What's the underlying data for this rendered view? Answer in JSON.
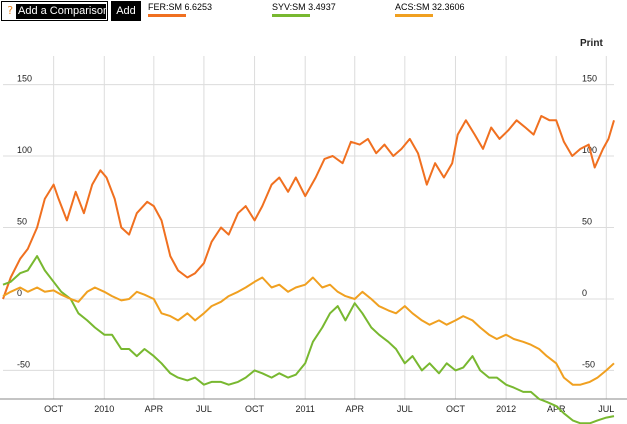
{
  "toolbar": {
    "help_icon": "?",
    "compare_placeholder": "Add a Comparison",
    "add_label": "Add",
    "legend": [
      {
        "label": "FER:SM 6.6253",
        "color": "#f07020"
      },
      {
        "label": "SYV:SM 3.4937",
        "color": "#78b830"
      },
      {
        "label": "ACS:SM 32.3606",
        "color": "#f0a020"
      }
    ]
  },
  "print_label": "Print",
  "chart_data": {
    "type": "line",
    "title": "",
    "xlabel": "",
    "ylabel": "",
    "ylim": [
      -70,
      170
    ],
    "x_range": [
      "2009-07-01",
      "2012-07-15"
    ],
    "grid": true,
    "yticks_left": [
      150,
      100,
      50,
      0,
      -50
    ],
    "yticks_right": [
      150,
      100,
      50,
      0,
      -50
    ],
    "xticks": [
      {
        "label": "OCT",
        "date": "2009-10-01"
      },
      {
        "label": "2010",
        "date": "2010-01-01"
      },
      {
        "label": "APR",
        "date": "2010-04-01"
      },
      {
        "label": "JUL",
        "date": "2010-07-01"
      },
      {
        "label": "OCT",
        "date": "2010-10-01"
      },
      {
        "label": "2011",
        "date": "2011-01-01"
      },
      {
        "label": "APR",
        "date": "2011-04-01"
      },
      {
        "label": "JUL",
        "date": "2011-07-01"
      },
      {
        "label": "OCT",
        "date": "2011-10-01"
      },
      {
        "label": "2012",
        "date": "2012-01-01"
      },
      {
        "label": "APR",
        "date": "2012-04-01"
      },
      {
        "label": "JUL",
        "date": "2012-07-01"
      }
    ],
    "series": [
      {
        "name": "FER:SM",
        "color": "#f07020",
        "points": [
          [
            "2009-07-01",
            0
          ],
          [
            "2009-07-15",
            15
          ],
          [
            "2009-08-01",
            28
          ],
          [
            "2009-08-15",
            35
          ],
          [
            "2009-09-01",
            50
          ],
          [
            "2009-09-15",
            70
          ],
          [
            "2009-10-01",
            80
          ],
          [
            "2009-10-10",
            70
          ],
          [
            "2009-10-25",
            55
          ],
          [
            "2009-11-10",
            75
          ],
          [
            "2009-11-25",
            60
          ],
          [
            "2009-12-10",
            80
          ],
          [
            "2009-12-25",
            90
          ],
          [
            "2010-01-05",
            85
          ],
          [
            "2010-01-20",
            70
          ],
          [
            "2010-02-01",
            50
          ],
          [
            "2010-02-15",
            45
          ],
          [
            "2010-03-01",
            60
          ],
          [
            "2010-03-20",
            68
          ],
          [
            "2010-04-01",
            65
          ],
          [
            "2010-04-15",
            55
          ],
          [
            "2010-05-01",
            30
          ],
          [
            "2010-05-15",
            20
          ],
          [
            "2010-06-01",
            15
          ],
          [
            "2010-06-15",
            18
          ],
          [
            "2010-07-01",
            25
          ],
          [
            "2010-07-15",
            40
          ],
          [
            "2010-08-01",
            50
          ],
          [
            "2010-08-15",
            45
          ],
          [
            "2010-09-01",
            60
          ],
          [
            "2010-09-15",
            65
          ],
          [
            "2010-10-01",
            55
          ],
          [
            "2010-10-15",
            65
          ],
          [
            "2010-11-01",
            80
          ],
          [
            "2010-11-15",
            85
          ],
          [
            "2010-12-01",
            75
          ],
          [
            "2010-12-15",
            85
          ],
          [
            "2011-01-01",
            72
          ],
          [
            "2011-01-20",
            85
          ],
          [
            "2011-02-05",
            98
          ],
          [
            "2011-02-20",
            100
          ],
          [
            "2011-03-10",
            95
          ],
          [
            "2011-03-25",
            110
          ],
          [
            "2011-04-10",
            108
          ],
          [
            "2011-04-25",
            112
          ],
          [
            "2011-05-10",
            102
          ],
          [
            "2011-05-25",
            108
          ],
          [
            "2011-06-10",
            100
          ],
          [
            "2011-06-25",
            105
          ],
          [
            "2011-07-10",
            112
          ],
          [
            "2011-07-25",
            102
          ],
          [
            "2011-08-10",
            80
          ],
          [
            "2011-08-25",
            95
          ],
          [
            "2011-09-10",
            85
          ],
          [
            "2011-09-25",
            95
          ],
          [
            "2011-10-05",
            115
          ],
          [
            "2011-10-20",
            125
          ],
          [
            "2011-11-05",
            115
          ],
          [
            "2011-11-20",
            105
          ],
          [
            "2011-12-05",
            120
          ],
          [
            "2011-12-20",
            112
          ],
          [
            "2012-01-05",
            118
          ],
          [
            "2012-01-20",
            125
          ],
          [
            "2012-02-05",
            120
          ],
          [
            "2012-02-20",
            115
          ],
          [
            "2012-03-05",
            128
          ],
          [
            "2012-03-20",
            125
          ],
          [
            "2012-04-01",
            125
          ],
          [
            "2012-04-15",
            110
          ],
          [
            "2012-04-30",
            100
          ],
          [
            "2012-05-15",
            105
          ],
          [
            "2012-05-30",
            108
          ],
          [
            "2012-06-10",
            92
          ],
          [
            "2012-06-25",
            105
          ],
          [
            "2012-07-05",
            112
          ],
          [
            "2012-07-15",
            125
          ]
        ]
      },
      {
        "name": "SYV:SM",
        "color": "#78b830",
        "points": [
          [
            "2009-07-01",
            10
          ],
          [
            "2009-07-15",
            12
          ],
          [
            "2009-08-01",
            18
          ],
          [
            "2009-08-15",
            20
          ],
          [
            "2009-09-01",
            30
          ],
          [
            "2009-09-15",
            20
          ],
          [
            "2009-10-01",
            12
          ],
          [
            "2009-10-15",
            5
          ],
          [
            "2009-11-01",
            0
          ],
          [
            "2009-11-15",
            -10
          ],
          [
            "2009-12-01",
            -15
          ],
          [
            "2009-12-15",
            -20
          ],
          [
            "2010-01-01",
            -25
          ],
          [
            "2010-01-15",
            -25
          ],
          [
            "2010-02-01",
            -35
          ],
          [
            "2010-02-15",
            -35
          ],
          [
            "2010-03-01",
            -40
          ],
          [
            "2010-03-15",
            -35
          ],
          [
            "2010-04-01",
            -40
          ],
          [
            "2010-04-15",
            -45
          ],
          [
            "2010-05-01",
            -52
          ],
          [
            "2010-05-15",
            -55
          ],
          [
            "2010-06-01",
            -57
          ],
          [
            "2010-06-15",
            -55
          ],
          [
            "2010-07-01",
            -60
          ],
          [
            "2010-07-15",
            -58
          ],
          [
            "2010-08-01",
            -58
          ],
          [
            "2010-08-15",
            -60
          ],
          [
            "2010-09-01",
            -58
          ],
          [
            "2010-09-15",
            -55
          ],
          [
            "2010-10-01",
            -50
          ],
          [
            "2010-10-15",
            -52
          ],
          [
            "2010-11-01",
            -55
          ],
          [
            "2010-11-15",
            -52
          ],
          [
            "2010-12-01",
            -55
          ],
          [
            "2010-12-15",
            -53
          ],
          [
            "2011-01-01",
            -45
          ],
          [
            "2011-01-15",
            -30
          ],
          [
            "2011-02-01",
            -20
          ],
          [
            "2011-02-15",
            -10
          ],
          [
            "2011-03-01",
            -5
          ],
          [
            "2011-03-15",
            -15
          ],
          [
            "2011-04-01",
            -3
          ],
          [
            "2011-04-15",
            -10
          ],
          [
            "2011-05-01",
            -20
          ],
          [
            "2011-05-15",
            -25
          ],
          [
            "2011-06-01",
            -30
          ],
          [
            "2011-06-15",
            -35
          ],
          [
            "2011-07-01",
            -45
          ],
          [
            "2011-07-15",
            -40
          ],
          [
            "2011-08-01",
            -50
          ],
          [
            "2011-08-15",
            -45
          ],
          [
            "2011-09-01",
            -52
          ],
          [
            "2011-09-15",
            -45
          ],
          [
            "2011-10-01",
            -50
          ],
          [
            "2011-10-15",
            -48
          ],
          [
            "2011-11-01",
            -40
          ],
          [
            "2011-11-15",
            -50
          ],
          [
            "2011-12-01",
            -55
          ],
          [
            "2011-12-15",
            -55
          ],
          [
            "2012-01-01",
            -60
          ],
          [
            "2012-01-15",
            -62
          ],
          [
            "2012-02-01",
            -65
          ],
          [
            "2012-02-15",
            -65
          ],
          [
            "2012-03-01",
            -70
          ],
          [
            "2012-03-15",
            -72
          ],
          [
            "2012-04-01",
            -75
          ],
          [
            "2012-04-15",
            -80
          ],
          [
            "2012-05-01",
            -85
          ],
          [
            "2012-05-15",
            -87
          ],
          [
            "2012-06-01",
            -87
          ],
          [
            "2012-06-15",
            -85
          ],
          [
            "2012-07-01",
            -83
          ],
          [
            "2012-07-15",
            -82
          ]
        ]
      },
      {
        "name": "ACS:SM",
        "color": "#f0a020",
        "points": [
          [
            "2009-07-01",
            2
          ],
          [
            "2009-07-15",
            5
          ],
          [
            "2009-08-01",
            8
          ],
          [
            "2009-08-15",
            5
          ],
          [
            "2009-09-01",
            8
          ],
          [
            "2009-09-15",
            5
          ],
          [
            "2009-10-01",
            6
          ],
          [
            "2009-10-15",
            3
          ],
          [
            "2009-11-01",
            0
          ],
          [
            "2009-11-15",
            -2
          ],
          [
            "2009-12-01",
            5
          ],
          [
            "2009-12-15",
            8
          ],
          [
            "2010-01-01",
            5
          ],
          [
            "2010-01-15",
            2
          ],
          [
            "2010-02-01",
            -1
          ],
          [
            "2010-02-15",
            0
          ],
          [
            "2010-03-01",
            5
          ],
          [
            "2010-03-15",
            3
          ],
          [
            "2010-04-01",
            0
          ],
          [
            "2010-04-15",
            -10
          ],
          [
            "2010-05-01",
            -12
          ],
          [
            "2010-05-15",
            -15
          ],
          [
            "2010-06-01",
            -10
          ],
          [
            "2010-06-15",
            -15
          ],
          [
            "2010-07-01",
            -10
          ],
          [
            "2010-07-15",
            -5
          ],
          [
            "2010-08-01",
            -2
          ],
          [
            "2010-08-15",
            2
          ],
          [
            "2010-09-01",
            5
          ],
          [
            "2010-09-15",
            8
          ],
          [
            "2010-10-01",
            12
          ],
          [
            "2010-10-15",
            15
          ],
          [
            "2010-11-01",
            8
          ],
          [
            "2010-11-15",
            10
          ],
          [
            "2010-12-01",
            5
          ],
          [
            "2010-12-15",
            8
          ],
          [
            "2011-01-01",
            10
          ],
          [
            "2011-01-15",
            15
          ],
          [
            "2011-02-01",
            8
          ],
          [
            "2011-02-15",
            10
          ],
          [
            "2011-03-01",
            5
          ],
          [
            "2011-03-15",
            2
          ],
          [
            "2011-04-01",
            0
          ],
          [
            "2011-04-15",
            5
          ],
          [
            "2011-05-01",
            0
          ],
          [
            "2011-05-15",
            -5
          ],
          [
            "2011-06-01",
            -8
          ],
          [
            "2011-06-15",
            -10
          ],
          [
            "2011-07-01",
            -5
          ],
          [
            "2011-07-15",
            -10
          ],
          [
            "2011-08-01",
            -15
          ],
          [
            "2011-08-15",
            -18
          ],
          [
            "2011-09-01",
            -15
          ],
          [
            "2011-09-15",
            -18
          ],
          [
            "2011-10-01",
            -15
          ],
          [
            "2011-10-15",
            -12
          ],
          [
            "2011-11-01",
            -15
          ],
          [
            "2011-11-15",
            -20
          ],
          [
            "2011-12-01",
            -25
          ],
          [
            "2011-12-15",
            -28
          ],
          [
            "2012-01-01",
            -25
          ],
          [
            "2012-01-15",
            -28
          ],
          [
            "2012-02-01",
            -30
          ],
          [
            "2012-02-15",
            -32
          ],
          [
            "2012-03-01",
            -35
          ],
          [
            "2012-03-15",
            -40
          ],
          [
            "2012-04-01",
            -45
          ],
          [
            "2012-04-15",
            -55
          ],
          [
            "2012-05-01",
            -60
          ],
          [
            "2012-05-15",
            -60
          ],
          [
            "2012-06-01",
            -58
          ],
          [
            "2012-06-15",
            -55
          ],
          [
            "2012-07-01",
            -50
          ],
          [
            "2012-07-15",
            -45
          ]
        ]
      }
    ]
  }
}
